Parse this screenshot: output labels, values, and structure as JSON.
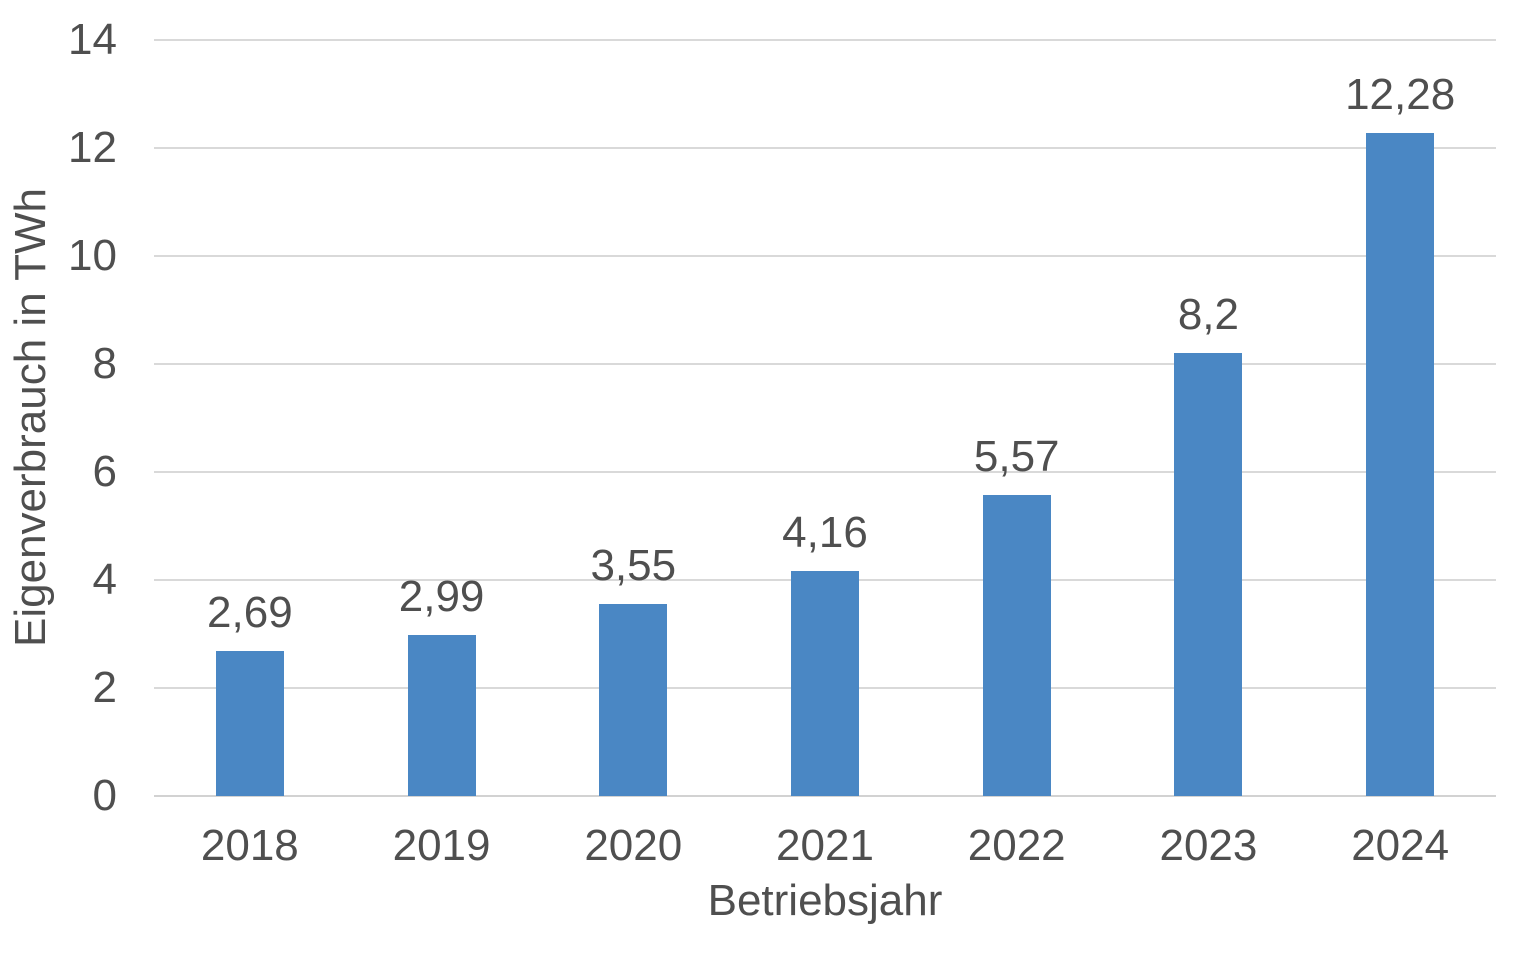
{
  "chart_data": {
    "type": "bar",
    "title": "",
    "categories": [
      "2018",
      "2019",
      "2020",
      "2021",
      "2022",
      "2023",
      "2024"
    ],
    "values": [
      2.69,
      2.99,
      3.55,
      4.16,
      5.57,
      8.2,
      12.28
    ],
    "value_labels": [
      "2,69",
      "2,99",
      "3,55",
      "4,16",
      "5,57",
      "8,2",
      "12,28"
    ],
    "xlabel": "Betriebsjahr",
    "ylabel": "Eigenverbrauch in TWh",
    "ylim": [
      0,
      14
    ],
    "ytick_step": 2,
    "ytick_labels": [
      "0",
      "2",
      "4",
      "6",
      "8",
      "10",
      "12",
      "14"
    ],
    "grid": "horizontal-gridlines-on",
    "legend": "none",
    "bar_color": "#4a87c4",
    "text_color": "#4f4f4f",
    "gridline_color": "#d9d9d9",
    "axis_line_color": "#d2d2d2",
    "background_color": "#ffffff"
  }
}
